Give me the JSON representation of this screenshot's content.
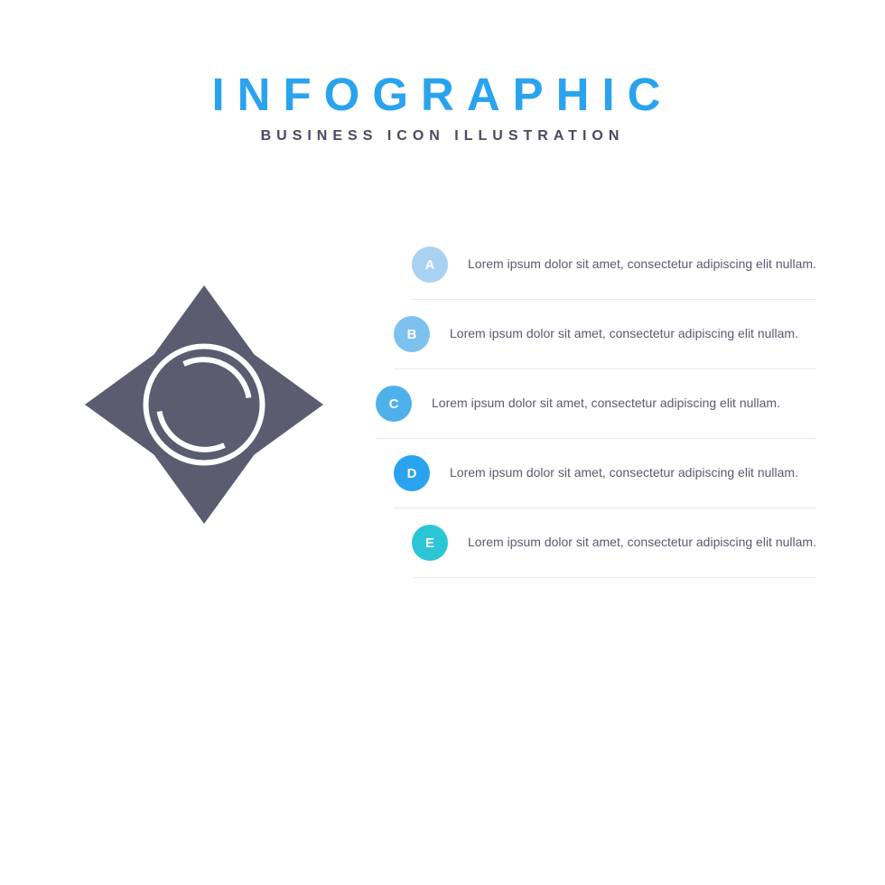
{
  "header": {
    "title": "INFOGRAPHIC",
    "subtitle": "BUSINESS ICON ILLUSTRATION",
    "title_color": "#2aa3ef",
    "subtitle_color": "#494a5f"
  },
  "icon": {
    "name": "sun-star-icon",
    "fill_color": "#5b5c70",
    "stroke_color": "#ffffff"
  },
  "steps": [
    {
      "label": "A",
      "text": "Lorem ipsum dolor sit amet, consectetur adipiscing elit nullam.",
      "badge_color": "#a9d1f2",
      "offset_class": "step-row-0"
    },
    {
      "label": "B",
      "text": "Lorem ipsum dolor sit amet, consectetur adipiscing elit nullam.",
      "badge_color": "#7dc1ee",
      "offset_class": "step-row-1"
    },
    {
      "label": "C",
      "text": "Lorem ipsum dolor sit amet, consectetur adipiscing elit nullam.",
      "badge_color": "#4fb1ec",
      "offset_class": "step-row-2"
    },
    {
      "label": "D",
      "text": "Lorem ipsum dolor sit amet, consectetur adipiscing elit nullam.",
      "badge_color": "#2aa3ef",
      "offset_class": "step-row-3"
    },
    {
      "label": "E",
      "text": "Lorem ipsum dolor sit amet, consectetur adipiscing elit nullam.",
      "badge_color": "#2bc6d6",
      "offset_class": "step-row-4"
    }
  ],
  "divider_color": "#e9e9ec",
  "text_color": "#5a5a6e"
}
